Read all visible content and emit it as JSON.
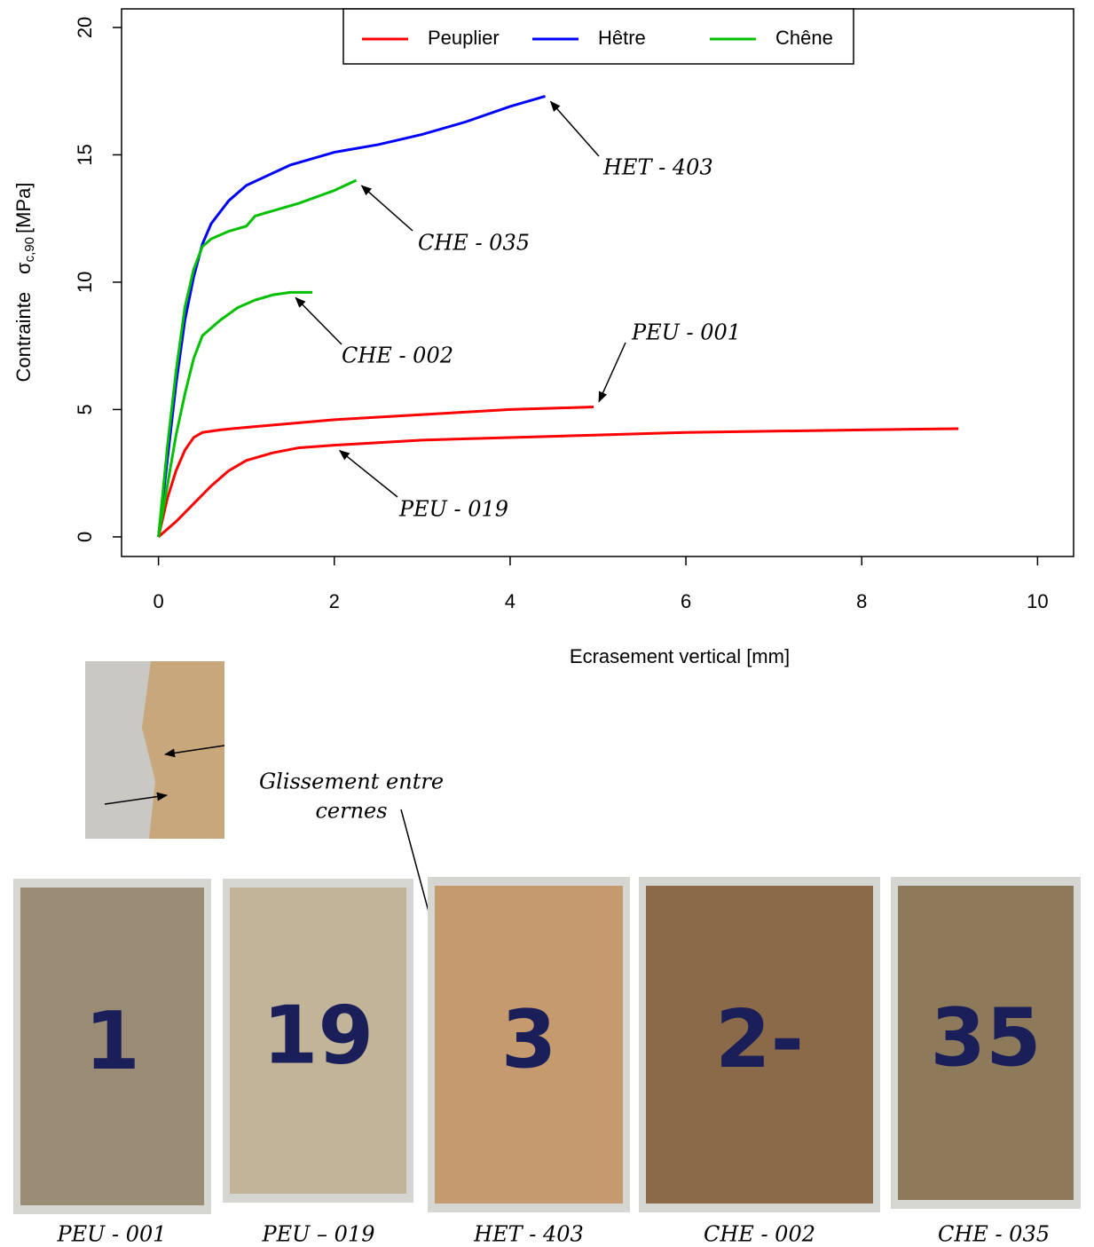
{
  "chart_data": {
    "type": "line",
    "x_label": "Ecrasement vertical [mm]",
    "y_label": "Contrainte",
    "y_label_symbol": "σ",
    "y_label_sub": "c,90",
    "y_label_unit": "[MPa]",
    "xlim": [
      -0.42,
      10.41
    ],
    "ylim": [
      -0.77,
      20.73
    ],
    "xticks": [
      0,
      2,
      4,
      6,
      8,
      10
    ],
    "yticks": [
      0,
      5,
      10,
      15,
      20
    ],
    "grid": false,
    "legend_position": "top",
    "series": [
      {
        "name": "Peuplier",
        "color": "#ff0000",
        "curves": [
          {
            "label": "PEU - 001",
            "x": [
              0,
              0.1,
              0.2,
              0.3,
              0.4,
              0.5,
              0.7,
              1,
              2,
              3,
              4,
              4.95
            ],
            "values": [
              0,
              1.5,
              2.6,
              3.4,
              3.9,
              4.1,
              4.2,
              4.3,
              4.6,
              4.8,
              5.0,
              5.1
            ]
          },
          {
            "label": "PEU - 019",
            "x": [
              0,
              0.2,
              0.4,
              0.6,
              0.8,
              1,
              1.3,
              1.6,
              2,
              3,
              4,
              5,
              6,
              7,
              8,
              9.1
            ],
            "values": [
              0,
              0.6,
              1.3,
              2.0,
              2.6,
              3.0,
              3.3,
              3.5,
              3.6,
              3.8,
              3.9,
              4.0,
              4.1,
              4.15,
              4.2,
              4.25
            ]
          }
        ]
      },
      {
        "name": "Hêtre",
        "color": "#0000ff",
        "curves": [
          {
            "label": "HET - 403",
            "x": [
              0,
              0.1,
              0.2,
              0.3,
              0.4,
              0.5,
              0.6,
              0.8,
              1,
              1.5,
              2,
              2.5,
              3,
              3.5,
              4,
              4.4
            ],
            "values": [
              0,
              3,
              6,
              8.5,
              10.2,
              11.5,
              12.3,
              13.2,
              13.8,
              14.6,
              15.1,
              15.4,
              15.8,
              16.3,
              16.9,
              17.3
            ]
          }
        ]
      },
      {
        "name": "Chêne",
        "color": "#00c000",
        "curves": [
          {
            "label": "CHE - 035",
            "x": [
              0,
              0.1,
              0.2,
              0.3,
              0.4,
              0.5,
              0.6,
              0.8,
              1,
              1.1,
              1.3,
              1.6,
              2,
              2.25
            ],
            "values": [
              0,
              3.5,
              6.5,
              9,
              10.5,
              11.4,
              11.7,
              12,
              12.2,
              12.6,
              12.8,
              13.1,
              13.6,
              14
            ]
          },
          {
            "label": "CHE - 002",
            "x": [
              0,
              0.1,
              0.2,
              0.3,
              0.4,
              0.5,
              0.7,
              0.9,
              1.1,
              1.3,
              1.5,
              1.75
            ],
            "values": [
              0,
              2,
              4,
              5.6,
              7,
              7.9,
              8.5,
              9,
              9.3,
              9.5,
              9.6,
              9.6
            ]
          }
        ]
      }
    ]
  },
  "photos": {
    "annotation": [
      "Glissement entre",
      "cernes"
    ],
    "samples": [
      {
        "marking": "1",
        "caption": "PEU - 001"
      },
      {
        "marking": "19",
        "caption": "PEU – 019"
      },
      {
        "marking": "3",
        "caption": "HET - 403"
      },
      {
        "marking": "2-",
        "caption": "CHE - 002"
      },
      {
        "marking": "35",
        "caption": "CHE - 035"
      }
    ]
  }
}
